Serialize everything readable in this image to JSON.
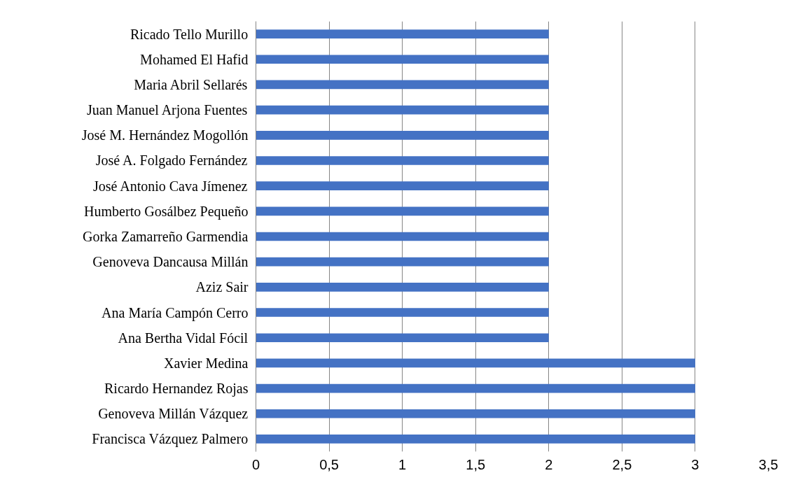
{
  "chart_data": {
    "type": "bar",
    "orientation": "horizontal",
    "categories": [
      "Ricado Tello Murillo",
      "Mohamed El Hafid",
      "Maria Abril Sellarés",
      "Juan Manuel Arjona Fuentes",
      "José M. Hernández Mogollón",
      "José A. Folgado Fernández",
      "José Antonio Cava Jímenez",
      "Humberto Gosálbez Pequeño",
      "Gorka Zamarreño Garmendia",
      "Genoveva Dancausa Millán",
      "Aziz Sair",
      "Ana María Campón Cerro",
      "Ana Bertha Vidal Fócil",
      "Xavier Medina",
      "Ricardo Hernandez Rojas",
      "Genoveva Millán Vázquez",
      "Francisca Vázquez Palmero"
    ],
    "values": [
      2,
      2,
      2,
      2,
      2,
      2,
      2,
      2,
      2,
      2,
      2,
      2,
      2,
      3,
      3,
      3,
      3
    ],
    "color": "#4472c4",
    "xlim": [
      0,
      3.5
    ],
    "xticks": [
      0,
      {
        "value": 0.5,
        "label": "0,5"
      },
      1,
      {
        "value": 1.5,
        "label": "1,5"
      },
      2,
      {
        "value": 2.5,
        "label": "2,5"
      },
      3,
      {
        "value": 3.5,
        "label": "3,5"
      }
    ],
    "grid": "x"
  }
}
